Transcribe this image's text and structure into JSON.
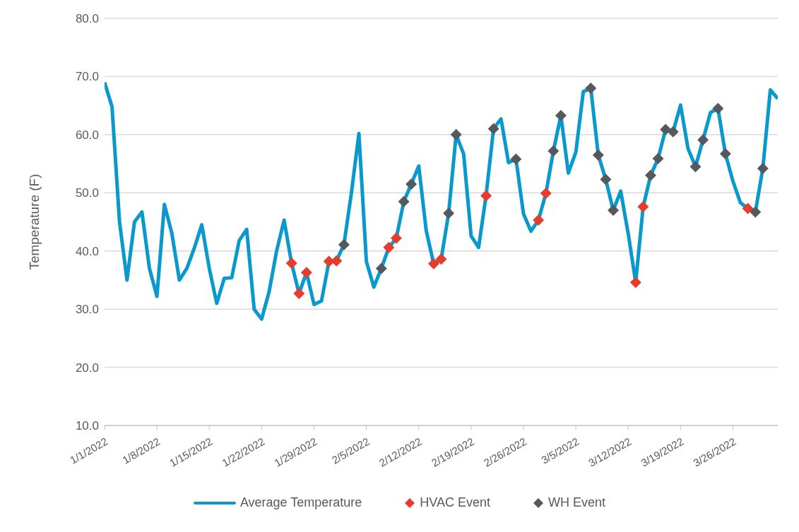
{
  "chart_data": {
    "type": "line",
    "ylabel": "Temperature (F)",
    "ylim": [
      10,
      80
    ],
    "yticks": [
      {
        "value": 10,
        "label": "10.0"
      },
      {
        "value": 20,
        "label": "20.0"
      },
      {
        "value": 30,
        "label": "30.0"
      },
      {
        "value": 40,
        "label": "40.0"
      },
      {
        "value": 50,
        "label": "50.0"
      },
      {
        "value": 60,
        "label": "60.0"
      },
      {
        "value": 70,
        "label": "70.0"
      },
      {
        "value": 80,
        "label": "80.0"
      }
    ],
    "xlim": [
      "2022-01-01",
      "2022-04-01"
    ],
    "xticks": [
      {
        "value": "2022-01-01",
        "label": "1/1/2022"
      },
      {
        "value": "2022-01-08",
        "label": "1/8/2022"
      },
      {
        "value": "2022-01-15",
        "label": "1/15/2022"
      },
      {
        "value": "2022-01-22",
        "label": "1/22/2022"
      },
      {
        "value": "2022-01-29",
        "label": "1/29/2022"
      },
      {
        "value": "2022-02-05",
        "label": "2/5/2022"
      },
      {
        "value": "2022-02-12",
        "label": "2/12/2022"
      },
      {
        "value": "2022-02-19",
        "label": "2/19/2022"
      },
      {
        "value": "2022-02-26",
        "label": "2/26/2022"
      },
      {
        "value": "2022-03-05",
        "label": "3/5/2022"
      },
      {
        "value": "2022-03-12",
        "label": "3/12/2022"
      },
      {
        "value": "2022-03-19",
        "label": "3/19/2022"
      },
      {
        "value": "2022-03-26",
        "label": "3/26/2022"
      }
    ],
    "grid": "y",
    "legend": "bottom",
    "marker": "none",
    "line_style": "solid",
    "series": [
      {
        "name": "Average Temperature",
        "color": "#0a99cc",
        "x": [
          "2022-01-01",
          "2022-01-02",
          "2022-01-03",
          "2022-01-04",
          "2022-01-05",
          "2022-01-06",
          "2022-01-07",
          "2022-01-08",
          "2022-01-09",
          "2022-01-10",
          "2022-01-11",
          "2022-01-12",
          "2022-01-13",
          "2022-01-14",
          "2022-01-15",
          "2022-01-16",
          "2022-01-17",
          "2022-01-18",
          "2022-01-19",
          "2022-01-20",
          "2022-01-21",
          "2022-01-22",
          "2022-01-23",
          "2022-01-24",
          "2022-01-25",
          "2022-01-26",
          "2022-01-27",
          "2022-01-28",
          "2022-01-29",
          "2022-01-30",
          "2022-01-31",
          "2022-02-01",
          "2022-02-02",
          "2022-02-03",
          "2022-02-04",
          "2022-02-05",
          "2022-02-06",
          "2022-02-07",
          "2022-02-08",
          "2022-02-09",
          "2022-02-10",
          "2022-02-11",
          "2022-02-12",
          "2022-02-13",
          "2022-02-14",
          "2022-02-15",
          "2022-02-16",
          "2022-02-17",
          "2022-02-18",
          "2022-02-19",
          "2022-02-20",
          "2022-02-21",
          "2022-02-22",
          "2022-02-23",
          "2022-02-24",
          "2022-02-25",
          "2022-02-26",
          "2022-02-27",
          "2022-02-28",
          "2022-03-01",
          "2022-03-02",
          "2022-03-03",
          "2022-03-04",
          "2022-03-05",
          "2022-03-06",
          "2022-03-07",
          "2022-03-08",
          "2022-03-09",
          "2022-03-10",
          "2022-03-11",
          "2022-03-12",
          "2022-03-13",
          "2022-03-14",
          "2022-03-15",
          "2022-03-16",
          "2022-03-17",
          "2022-03-18",
          "2022-03-19",
          "2022-03-20",
          "2022-03-21",
          "2022-03-22",
          "2022-03-23",
          "2022-03-24",
          "2022-03-25",
          "2022-03-26",
          "2022-03-27",
          "2022-03-28",
          "2022-03-29",
          "2022-03-30",
          "2022-03-31",
          "2022-04-01"
        ],
        "values": [
          69,
          64.8,
          45,
          35,
          45,
          46.7,
          37,
          32.2,
          48,
          43,
          35,
          37,
          40.5,
          44.5,
          37,
          31,
          35.3,
          35.4,
          41.8,
          43.7,
          30,
          28.3,
          33,
          40,
          45.3,
          37.9,
          32.7,
          36.3,
          30.8,
          31.4,
          38.2,
          38.3,
          41.1,
          50,
          60.2,
          38.2,
          33.8,
          37,
          40.6,
          42.2,
          48.5,
          51.5,
          54.6,
          43.5,
          37.8,
          38.6,
          46.5,
          60,
          56.7,
          42.6,
          40.6,
          49.5,
          61,
          62.7,
          55.2,
          55.8,
          46.4,
          43.4,
          45.3,
          49.9,
          57.2,
          63.3,
          53.4,
          57,
          67.4,
          68,
          56.5,
          52.3,
          47,
          50.3,
          43,
          34.6,
          47.6,
          53,
          55.9,
          60.9,
          60.5,
          65.1,
          57.6,
          54.5,
          59.1,
          63.8,
          64.5,
          56.7,
          52,
          48.3,
          47.3,
          46.7,
          54.2,
          67.7,
          66.2
        ]
      },
      {
        "name": "HVAC Event",
        "type": "scatter",
        "marker": "diamond",
        "color": "#e63c2e",
        "x": [
          "2022-01-26",
          "2022-01-27",
          "2022-01-28",
          "2022-01-31",
          "2022-02-01",
          "2022-02-08",
          "2022-02-09",
          "2022-02-14",
          "2022-02-15",
          "2022-02-21",
          "2022-02-28",
          "2022-03-01",
          "2022-03-13",
          "2022-03-14",
          "2022-03-28"
        ],
        "values": [
          37.9,
          32.7,
          36.3,
          38.2,
          38.3,
          40.6,
          42.2,
          37.8,
          38.6,
          49.5,
          45.3,
          49.9,
          34.6,
          47.6,
          47.3
        ]
      },
      {
        "name": "WH Event",
        "type": "scatter",
        "marker": "diamond",
        "color": "#55595d",
        "x": [
          "2022-02-02",
          "2022-02-07",
          "2022-02-10",
          "2022-02-11",
          "2022-02-16",
          "2022-02-17",
          "2022-02-22",
          "2022-02-25",
          "2022-03-02",
          "2022-03-03",
          "2022-03-07",
          "2022-03-08",
          "2022-03-09",
          "2022-03-10",
          "2022-03-15",
          "2022-03-16",
          "2022-03-17",
          "2022-03-18",
          "2022-03-21",
          "2022-03-22",
          "2022-03-24",
          "2022-03-25",
          "2022-03-29",
          "2022-03-30"
        ],
        "values": [
          41.1,
          37,
          48.5,
          51.5,
          46.5,
          60,
          61,
          55.8,
          57.2,
          63.3,
          68,
          56.5,
          52.3,
          47,
          53,
          55.9,
          60.9,
          60.5,
          54.5,
          59.1,
          64.5,
          56.7,
          46.7,
          54.2
        ]
      }
    ]
  }
}
